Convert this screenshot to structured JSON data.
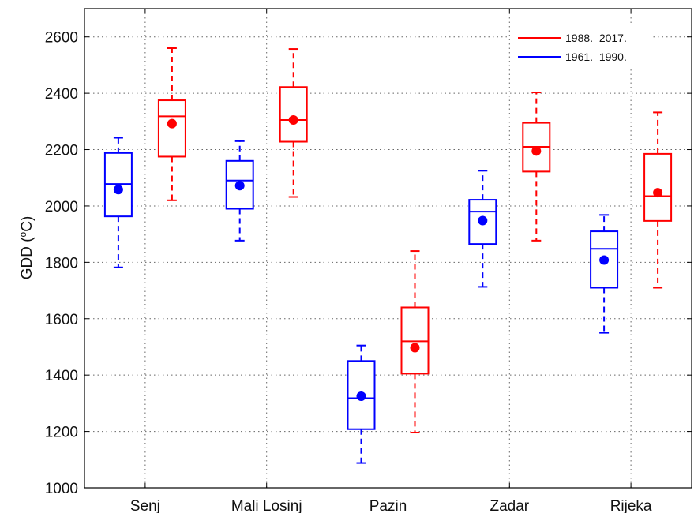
{
  "chart_data": {
    "type": "box",
    "ylabel": "GDD (",
    "ylabel_sup": "o",
    "ylabel_unit": "C)",
    "ylim": [
      1000,
      2700
    ],
    "yticks": [
      1000,
      1200,
      1400,
      1600,
      1800,
      2000,
      2200,
      2400,
      2600
    ],
    "grid": true,
    "legend_position": "top-right",
    "categories": [
      "Senj",
      "Mali Losinj",
      "Pazin",
      "Zadar",
      "Rijeka"
    ],
    "series": [
      {
        "name": "1988.–2017.",
        "color": "#ff0000",
        "boxes": [
          {
            "whisker_low": 2020,
            "q1": 2175,
            "median": 2318,
            "q3": 2375,
            "whisker_high": 2560,
            "mean": 2292
          },
          {
            "whisker_low": 2032,
            "q1": 2228,
            "median": 2305,
            "q3": 2422,
            "whisker_high": 2557,
            "mean": 2305
          },
          {
            "whisker_low": 1196,
            "q1": 1405,
            "median": 1520,
            "q3": 1640,
            "whisker_high": 1840,
            "mean": 1497
          },
          {
            "whisker_low": 1877,
            "q1": 2122,
            "median": 2210,
            "q3": 2295,
            "whisker_high": 2403,
            "mean": 2195
          },
          {
            "whisker_low": 1710,
            "q1": 1947,
            "median": 2035,
            "q3": 2185,
            "whisker_high": 2332,
            "mean": 2047
          }
        ]
      },
      {
        "name": "1961.–1990.",
        "color": "#0000ff",
        "boxes": [
          {
            "whisker_low": 1782,
            "q1": 1963,
            "median": 2078,
            "q3": 2188,
            "whisker_high": 2242,
            "mean": 2058
          },
          {
            "whisker_low": 1877,
            "q1": 1990,
            "median": 2090,
            "q3": 2160,
            "whisker_high": 2230,
            "mean": 2072
          },
          {
            "whisker_low": 1088,
            "q1": 1208,
            "median": 1318,
            "q3": 1450,
            "whisker_high": 1505,
            "mean": 1325
          },
          {
            "whisker_low": 1713,
            "q1": 1865,
            "median": 1980,
            "q3": 2022,
            "whisker_high": 2125,
            "mean": 1948
          },
          {
            "whisker_low": 1550,
            "q1": 1710,
            "median": 1848,
            "q3": 1910,
            "whisker_high": 1968,
            "mean": 1808
          }
        ]
      }
    ]
  }
}
